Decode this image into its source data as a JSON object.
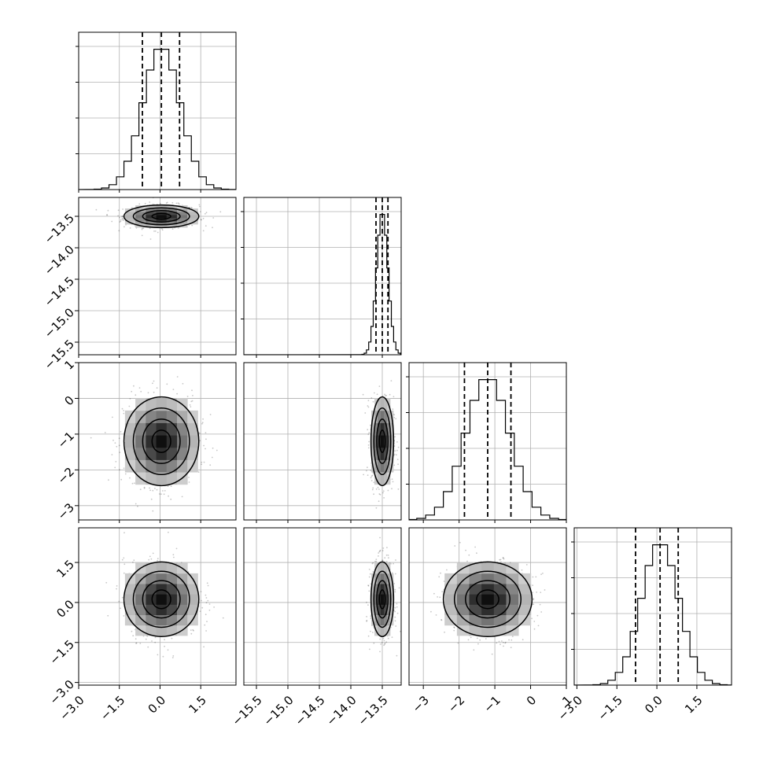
{
  "chart_data": {
    "type": "corner",
    "parameters": [
      {
        "ticks": [
          -3.0,
          -1.5,
          0.0,
          1.5
        ],
        "tick_labels": [
          "−3.0",
          "−1.5",
          "0.0",
          "1.5"
        ],
        "range": [
          -3.0,
          2.8
        ],
        "mean": 0.05,
        "std": 0.69,
        "quantiles": [
          -0.65,
          0.05,
          0.72
        ]
      },
      {
        "ticks": [
          -15.5,
          -15.0,
          -14.5,
          -14.0,
          -13.5
        ],
        "tick_labels": [
          "−15.5",
          "−15.0",
          "−14.5",
          "−14.0",
          "−13.5"
        ],
        "range": [
          -15.7,
          -13.2
        ],
        "mean": -13.5,
        "std": 0.09,
        "quantiles": [
          -13.6,
          -13.5,
          -13.41
        ]
      },
      {
        "ticks": [
          -3,
          -2,
          -1,
          0,
          1
        ],
        "tick_labels": [
          "−3",
          "−2",
          "−1",
          "0",
          "1"
        ],
        "range": [
          -3.4,
          1.0
        ],
        "mean": -1.2,
        "std": 0.62,
        "quantiles": [
          -1.85,
          -1.2,
          -0.55
        ]
      },
      {
        "ticks": [
          -3.0,
          -1.5,
          0.0,
          1.5
        ],
        "tick_labels": [
          "−3.0",
          "−1.5",
          "0.0",
          "1.5"
        ],
        "range": [
          -3.1,
          2.8
        ],
        "mean": 0.12,
        "std": 0.7,
        "quantiles": [
          -0.8,
          0.12,
          0.8
        ]
      }
    ],
    "grid": true,
    "bins": 20,
    "contour_levels": 4
  }
}
